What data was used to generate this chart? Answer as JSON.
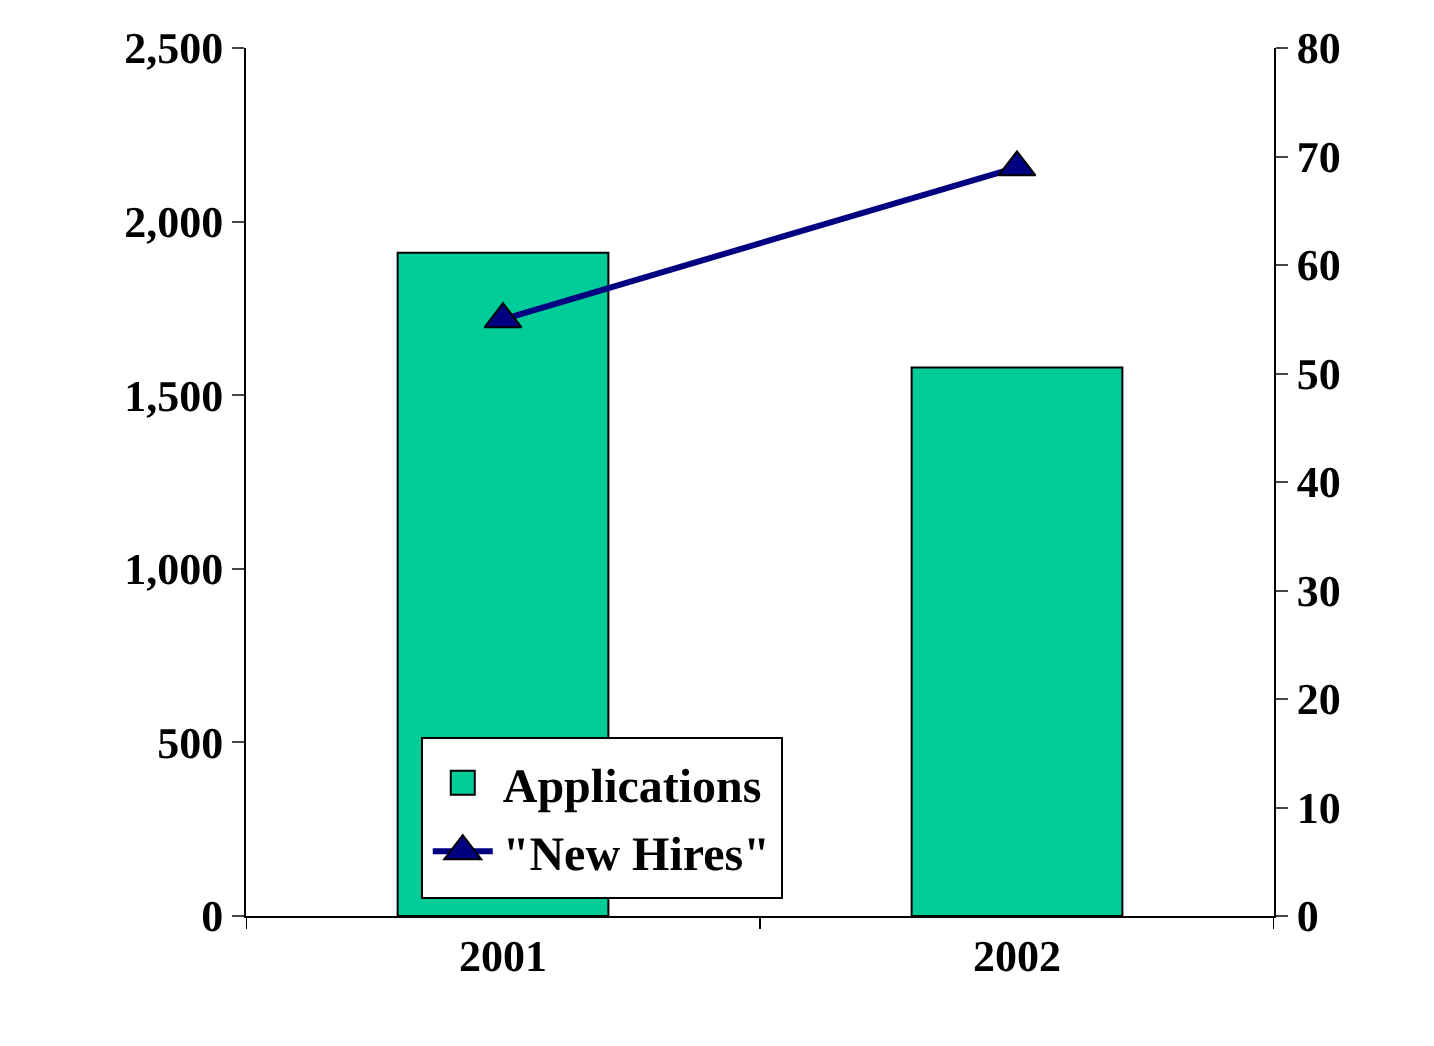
{
  "chart_data": {
    "type": "bar",
    "categories": [
      "2001",
      "2002"
    ],
    "series": [
      {
        "name": "Applications",
        "color": "#00cc99",
        "values": [
          1910,
          1580
        ]
      },
      {
        "name": "\"New Hires\"",
        "type": "line",
        "axis": "y2",
        "color": "#000080",
        "marker": "triangle",
        "values": [
          55,
          69
        ]
      }
    ],
    "ylim": [
      0,
      2500
    ],
    "yticks": [
      0,
      {
        "value": 500,
        "label": "500"
      },
      {
        "value": 1000,
        "label": "1,000"
      },
      {
        "value": 1500,
        "label": "1,500"
      },
      {
        "value": 2000,
        "label": "2,000"
      },
      {
        "value": 2500,
        "label": "2,500"
      }
    ],
    "y2lim": [
      0,
      80
    ],
    "y2ticks": [
      0,
      10,
      20,
      30,
      40,
      50,
      60,
      70,
      80
    ],
    "legend": "bottom"
  }
}
